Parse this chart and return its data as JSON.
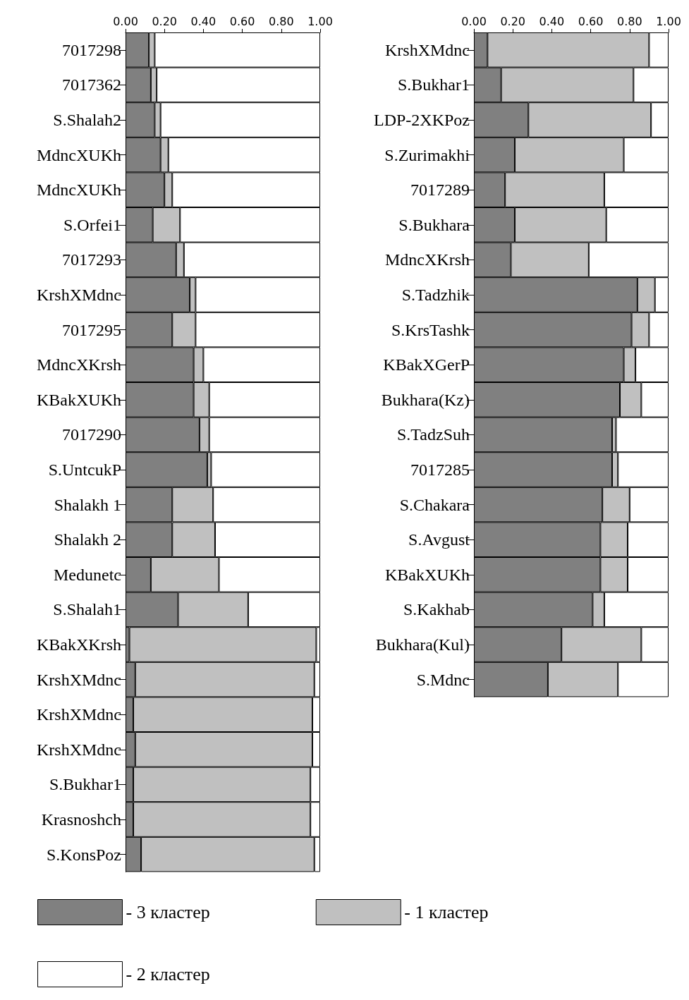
{
  "chart_data": [
    {
      "type": "bar",
      "orientation": "horizontal",
      "stacked": true,
      "legend": "bottom",
      "grid": false,
      "categories": [
        "7017298",
        "7017362",
        "S.Shalah2",
        "MdncXUKh",
        "MdncXUKh",
        "S.Orfei1",
        "7017293",
        "KrshXMdnc",
        "7017295",
        "MdncXKrsh",
        "KBakXUKh",
        "7017290",
        "S.UntcukP",
        "Shalakh 1",
        "Shalakh 2",
        "Medunetc",
        "S.Shalah1",
        "KBakXKrsh",
        "KrshXMdnc",
        "KrshXMdnc",
        "KrshXMdnc",
        "S.Bukhar1",
        "Krasnoshch",
        "S.KonsPoz"
      ],
      "xlim": [
        0,
        1
      ],
      "xticks": [
        {
          "value": 0,
          "label": "0.00"
        },
        {
          "value": 0.2,
          "label": "0.20"
        },
        {
          "value": 0.4,
          "label": "0.40"
        },
        {
          "value": 0.6,
          "label": "0.60"
        },
        {
          "value": 0.8,
          "label": "0.80"
        },
        {
          "value": 1,
          "label": "1.00"
        }
      ],
      "series": [
        {
          "name": "- 3 кластер",
          "color": "#808080",
          "values": [
            0.12,
            0.13,
            0.15,
            0.18,
            0.2,
            0.14,
            0.26,
            0.33,
            0.24,
            0.35,
            0.35,
            0.38,
            0.42,
            0.24,
            0.24,
            0.13,
            0.27,
            0.02,
            0.05,
            0.04,
            0.05,
            0.04,
            0.04,
            0.08
          ]
        },
        {
          "name": "- 1 кластер",
          "color": "#c0c0c0",
          "values": [
            0.03,
            0.03,
            0.03,
            0.04,
            0.04,
            0.14,
            0.04,
            0.03,
            0.12,
            0.05,
            0.08,
            0.05,
            0.02,
            0.21,
            0.22,
            0.35,
            0.36,
            0.96,
            0.92,
            0.92,
            0.91,
            0.91,
            0.91,
            0.89
          ]
        },
        {
          "name": "- 2 кластер",
          "color": "#ffffff",
          "values": [
            0.85,
            0.84,
            0.82,
            0.78,
            0.76,
            0.72,
            0.7,
            0.64,
            0.64,
            0.6,
            0.57,
            0.57,
            0.56,
            0.55,
            0.54,
            0.52,
            0.37,
            0.02,
            0.03,
            0.04,
            0.04,
            0.05,
            0.05,
            0.03
          ]
        }
      ]
    },
    {
      "type": "bar",
      "orientation": "horizontal",
      "stacked": true,
      "legend": false,
      "grid": false,
      "categories": [
        "KrshXMdnc",
        "S.Bukhar1",
        "LDP-2XKPoz",
        "S.Zurimakhi",
        "7017289",
        "S.Bukhara",
        "MdncXKrsh",
        "S.Tadzhik",
        "S.KrsTashk",
        "KBakXGerP",
        "Bukhara(Kz)",
        "S.TadzSuh",
        "7017285",
        "S.Chakara",
        "S.Avgust",
        "KBakXUKh",
        "S.Kakhab",
        "Bukhara(Kul)",
        "S.Mdnc"
      ],
      "xlim": [
        0,
        1
      ],
      "xticks": [
        {
          "value": 0,
          "label": "0.00"
        },
        {
          "value": 0.2,
          "label": "0.20"
        },
        {
          "value": 0.4,
          "label": "0.40"
        },
        {
          "value": 0.6,
          "label": "0.60"
        },
        {
          "value": 0.8,
          "label": "0.80"
        },
        {
          "value": 1,
          "label": "1.00"
        }
      ],
      "series": [
        {
          "color": "#808080",
          "values": [
            0.07,
            0.14,
            0.28,
            0.21,
            0.16,
            0.21,
            0.19,
            0.84,
            0.81,
            0.77,
            0.75,
            0.71,
            0.71,
            0.66,
            0.65,
            0.65,
            0.61,
            0.45,
            0.38
          ]
        },
        {
          "color": "#c0c0c0",
          "values": [
            0.83,
            0.68,
            0.63,
            0.56,
            0.51,
            0.47,
            0.4,
            0.09,
            0.09,
            0.06,
            0.11,
            0.02,
            0.03,
            0.14,
            0.14,
            0.14,
            0.06,
            0.41,
            0.36
          ]
        },
        {
          "color": "#ffffff",
          "values": [
            0.1,
            0.18,
            0.09,
            0.23,
            0.33,
            0.32,
            0.41,
            0.07,
            0.1,
            0.17,
            0.14,
            0.27,
            0.26,
            0.2,
            0.21,
            0.21,
            0.33,
            0.14,
            0.26
          ]
        }
      ]
    }
  ]
}
